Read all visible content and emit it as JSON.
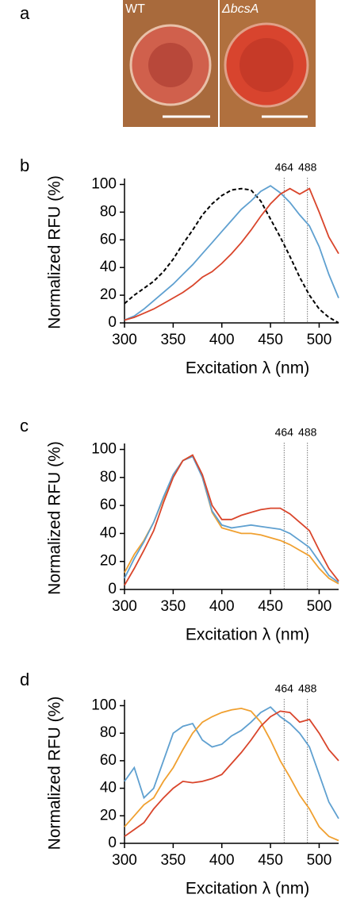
{
  "image_panel": {
    "panel_label": "a",
    "labels": [
      "WT",
      "ΔbcsA"
    ]
  },
  "chart_data": [
    {
      "type": "line",
      "panel_label": "b",
      "y_label": "Normalized RFU (%)",
      "x_label": "Excitation λ (nm)",
      "x": [
        300,
        310,
        320,
        330,
        340,
        350,
        360,
        370,
        380,
        390,
        400,
        410,
        420,
        430,
        440,
        450,
        460,
        470,
        480,
        490,
        500,
        510,
        520
      ],
      "xlim": [
        300,
        520
      ],
      "xticks": [
        300,
        350,
        400,
        450,
        500
      ],
      "ylim": [
        0,
        102
      ],
      "yticks": [
        0,
        20,
        40,
        60,
        80,
        100
      ],
      "vlines": [
        464,
        488
      ],
      "series": [
        {
          "color": "#000000",
          "style": "dashed",
          "values": [
            14,
            20,
            25,
            30,
            37,
            46,
            57,
            67,
            78,
            86,
            92,
            96,
            97,
            96,
            88,
            75,
            62,
            48,
            33,
            20,
            10,
            4,
            0
          ]
        },
        {
          "color": "#5fa0d0",
          "style": "solid",
          "values": [
            2,
            5,
            10,
            16,
            22,
            28,
            35,
            42,
            50,
            58,
            66,
            74,
            82,
            88,
            95,
            99,
            94,
            87,
            78,
            70,
            55,
            35,
            18
          ]
        },
        {
          "color": "#d9452b",
          "style": "solid",
          "values": [
            2,
            4,
            7,
            10,
            14,
            18,
            22,
            27,
            33,
            37,
            43,
            50,
            58,
            67,
            77,
            86,
            93,
            97,
            93,
            97,
            80,
            62,
            50
          ]
        }
      ]
    },
    {
      "type": "line",
      "panel_label": "c",
      "y_label": "Normalized RFU (%)",
      "x_label": "Excitation λ (nm)",
      "x": [
        300,
        310,
        320,
        330,
        340,
        350,
        360,
        370,
        380,
        390,
        400,
        410,
        420,
        430,
        440,
        450,
        460,
        470,
        480,
        490,
        500,
        510,
        520
      ],
      "xlim": [
        300,
        520
      ],
      "xticks": [
        300,
        350,
        400,
        450,
        500
      ],
      "ylim": [
        0,
        102
      ],
      "yticks": [
        0,
        20,
        40,
        60,
        80,
        100
      ],
      "vlines": [
        464,
        488
      ],
      "series": [
        {
          "color": "#f0a030",
          "style": "solid",
          "values": [
            12,
            25,
            35,
            48,
            65,
            82,
            92,
            96,
            80,
            55,
            44,
            42,
            40,
            40,
            39,
            37,
            35,
            32,
            28,
            24,
            15,
            8,
            4
          ]
        },
        {
          "color": "#5fa0d0",
          "style": "solid",
          "values": [
            8,
            22,
            34,
            48,
            66,
            82,
            92,
            95,
            80,
            56,
            46,
            44,
            45,
            46,
            45,
            44,
            43,
            40,
            35,
            30,
            20,
            10,
            5
          ]
        },
        {
          "color": "#d9452b",
          "style": "solid",
          "values": [
            3,
            15,
            28,
            42,
            62,
            80,
            92,
            96,
            82,
            60,
            50,
            50,
            53,
            55,
            57,
            58,
            58,
            54,
            48,
            42,
            28,
            15,
            6
          ]
        }
      ]
    },
    {
      "type": "line",
      "panel_label": "d",
      "y_label": "Normalized RFU (%)",
      "x_label": "Excitation λ (nm)",
      "x": [
        300,
        310,
        320,
        330,
        340,
        350,
        360,
        370,
        380,
        390,
        400,
        410,
        420,
        430,
        440,
        450,
        460,
        470,
        480,
        490,
        500,
        510,
        520
      ],
      "xlim": [
        300,
        520
      ],
      "xticks": [
        300,
        350,
        400,
        450,
        500
      ],
      "ylim": [
        0,
        102
      ],
      "yticks": [
        0,
        20,
        40,
        60,
        80,
        100
      ],
      "vlines": [
        464,
        488
      ],
      "series": [
        {
          "color": "#5fa0d0",
          "style": "solid",
          "values": [
            45,
            55,
            33,
            40,
            60,
            80,
            85,
            87,
            75,
            70,
            72,
            78,
            82,
            88,
            95,
            99,
            92,
            87,
            80,
            70,
            50,
            30,
            18
          ]
        },
        {
          "color": "#f0a030",
          "style": "solid",
          "values": [
            12,
            20,
            28,
            33,
            45,
            55,
            68,
            80,
            88,
            92,
            95,
            97,
            98,
            96,
            88,
            75,
            60,
            48,
            35,
            25,
            12,
            5,
            2
          ]
        },
        {
          "color": "#d9452b",
          "style": "solid",
          "values": [
            5,
            10,
            15,
            25,
            33,
            40,
            45,
            44,
            45,
            47,
            50,
            58,
            66,
            75,
            85,
            92,
            96,
            95,
            88,
            90,
            80,
            68,
            60
          ]
        }
      ]
    }
  ]
}
